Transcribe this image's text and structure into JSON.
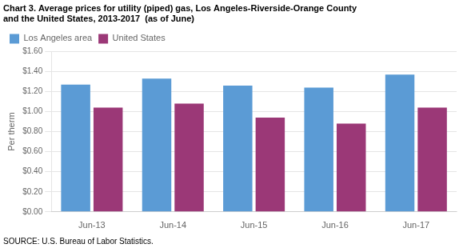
{
  "chart_data": {
    "type": "bar",
    "title": [
      "Chart 3. Average prices for utility (piped) gas, Los Angeles-Riverside-Orange County",
      "and the United States, 2013-2017  (as of June)"
    ],
    "ylabel": "Per therm",
    "annotations": [
      "SOURCE: U.S. Bureau of Labor Statistics."
    ],
    "categories": [
      "Jun-13",
      "Jun-14",
      "Jun-15",
      "Jun-16",
      "Jun-17"
    ],
    "series": [
      {
        "name": "Los Angeles area",
        "color": "#5B9BD5",
        "values": [
          1.27,
          1.33,
          1.26,
          1.24,
          1.37
        ]
      },
      {
        "name": "United States",
        "color": "#9B3877",
        "values": [
          1.04,
          1.08,
          0.94,
          0.88,
          1.04
        ]
      }
    ],
    "ylim": [
      0.0,
      1.6
    ],
    "yticks": [
      {
        "value": 0.0,
        "label": "$0.00"
      },
      {
        "value": 0.2,
        "label": "$0.20"
      },
      {
        "value": 0.4,
        "label": "$0.40"
      },
      {
        "value": 0.6,
        "label": "$0.60"
      },
      {
        "value": 0.8,
        "label": "$0.80"
      },
      {
        "value": 1.0,
        "label": "$1.00"
      },
      {
        "value": 1.2,
        "label": "$1.20"
      },
      {
        "value": 1.4,
        "label": "$1.40"
      },
      {
        "value": 1.6,
        "label": "$1.60"
      }
    ],
    "grid": true,
    "legend": "upper left"
  }
}
